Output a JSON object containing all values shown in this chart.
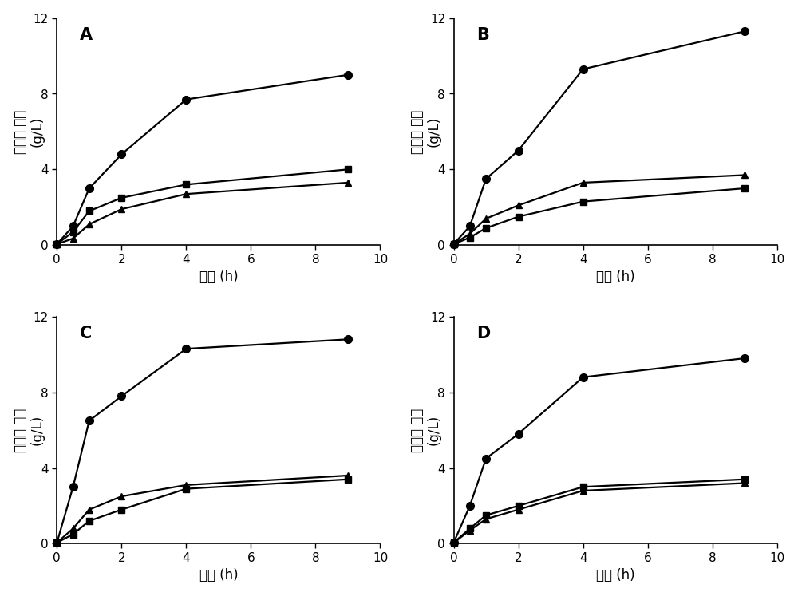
{
  "x": [
    0,
    0.5,
    1,
    2,
    4,
    9
  ],
  "panels": [
    {
      "label": "A",
      "circle": [
        0.05,
        1.0,
        3.0,
        4.8,
        7.7,
        9.0
      ],
      "square": [
        0.05,
        0.7,
        1.8,
        2.5,
        3.2,
        4.0
      ],
      "triangle": [
        0.05,
        0.35,
        1.1,
        1.9,
        2.7,
        3.3
      ]
    },
    {
      "label": "B",
      "circle": [
        0.05,
        1.0,
        3.5,
        5.0,
        9.3,
        11.3
      ],
      "square": [
        0.05,
        0.4,
        0.9,
        1.5,
        2.3,
        3.0
      ],
      "triangle": [
        0.05,
        0.6,
        1.4,
        2.1,
        3.3,
        3.7
      ]
    },
    {
      "label": "C",
      "circle": [
        0.05,
        3.0,
        6.5,
        7.8,
        10.3,
        10.8
      ],
      "square": [
        0.05,
        0.5,
        1.2,
        1.8,
        2.9,
        3.4
      ],
      "triangle": [
        0.05,
        0.8,
        1.8,
        2.5,
        3.1,
        3.6
      ]
    },
    {
      "label": "D",
      "circle": [
        0.05,
        2.0,
        4.5,
        5.8,
        8.8,
        9.8
      ],
      "square": [
        0.05,
        0.8,
        1.5,
        2.0,
        3.0,
        3.4
      ],
      "triangle": [
        0.05,
        0.7,
        1.3,
        1.8,
        2.8,
        3.2
      ]
    }
  ],
  "xlim": [
    0,
    10
  ],
  "ylim": [
    0,
    12
  ],
  "xticks": [
    0,
    2,
    4,
    6,
    8,
    10
  ],
  "yticks": [
    0,
    4,
    8,
    12
  ],
  "xlabel_cn": "时间",
  "xlabel_unit": "(h)",
  "ylabel_line1": "环糊精 产量",
  "ylabel_line2": "(g/L)",
  "line_color": "#000000",
  "marker_size": 7,
  "line_width": 1.6,
  "label_fontsize": 12,
  "tick_fontsize": 11,
  "panel_label_fontsize": 15,
  "bg_color": "#ffffff"
}
